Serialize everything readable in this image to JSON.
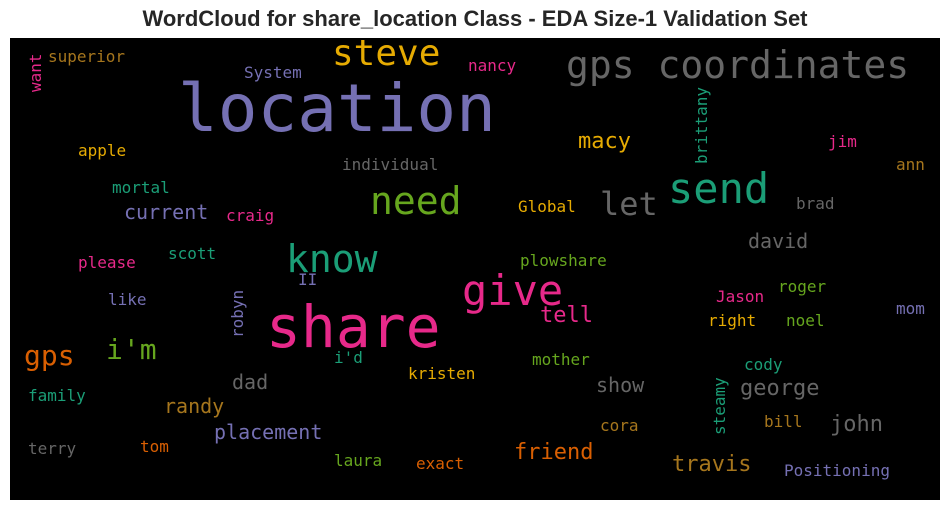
{
  "title": "WordCloud for share_location Class - EDA Size-1 Validation Set",
  "colors": {
    "purple": "#7570b3",
    "green": "#1b9e77",
    "orange": "#d95f02",
    "pink": "#e7298a",
    "lime": "#66a61e",
    "gold": "#e6ab02",
    "brown": "#a6761d",
    "gray": "#666666"
  },
  "words": {
    "location": "location",
    "share": "share",
    "gps_coordinates": "gps coordinates",
    "steve": "steve",
    "send": "send",
    "give": "give",
    "know": "know",
    "need": "need",
    "let": "let",
    "gps": "gps",
    "im": "i'm",
    "macy": "macy",
    "nancy": "nancy",
    "system": "System",
    "superior": "superior",
    "want": "want",
    "apple": "apple",
    "individual": "individual",
    "brittany": "brittany",
    "jim": "jim",
    "ann": "ann",
    "mortal": "mortal",
    "current": "current",
    "craig": "craig",
    "global": "Global",
    "brad": "brad",
    "david": "david",
    "scott": "scott",
    "please": "please",
    "ii": "II",
    "plowshare": "plowshare",
    "like": "like",
    "robyn": "robyn",
    "tell": "tell",
    "jason": "Jason",
    "roger": "roger",
    "mom": "mom",
    "right": "right",
    "noel": "noel",
    "id": "i'd",
    "mother": "mother",
    "cody": "cody",
    "dad": "dad",
    "kristen": "kristen",
    "show": "show",
    "george": "george",
    "family": "family",
    "randy": "randy",
    "steamy": "steamy",
    "placement": "placement",
    "john": "john",
    "bill": "bill",
    "cora": "cora",
    "friend": "friend",
    "terry": "terry",
    "tom": "tom",
    "laura": "laura",
    "exact": "exact",
    "travis": "travis",
    "positioning": "Positioning"
  }
}
